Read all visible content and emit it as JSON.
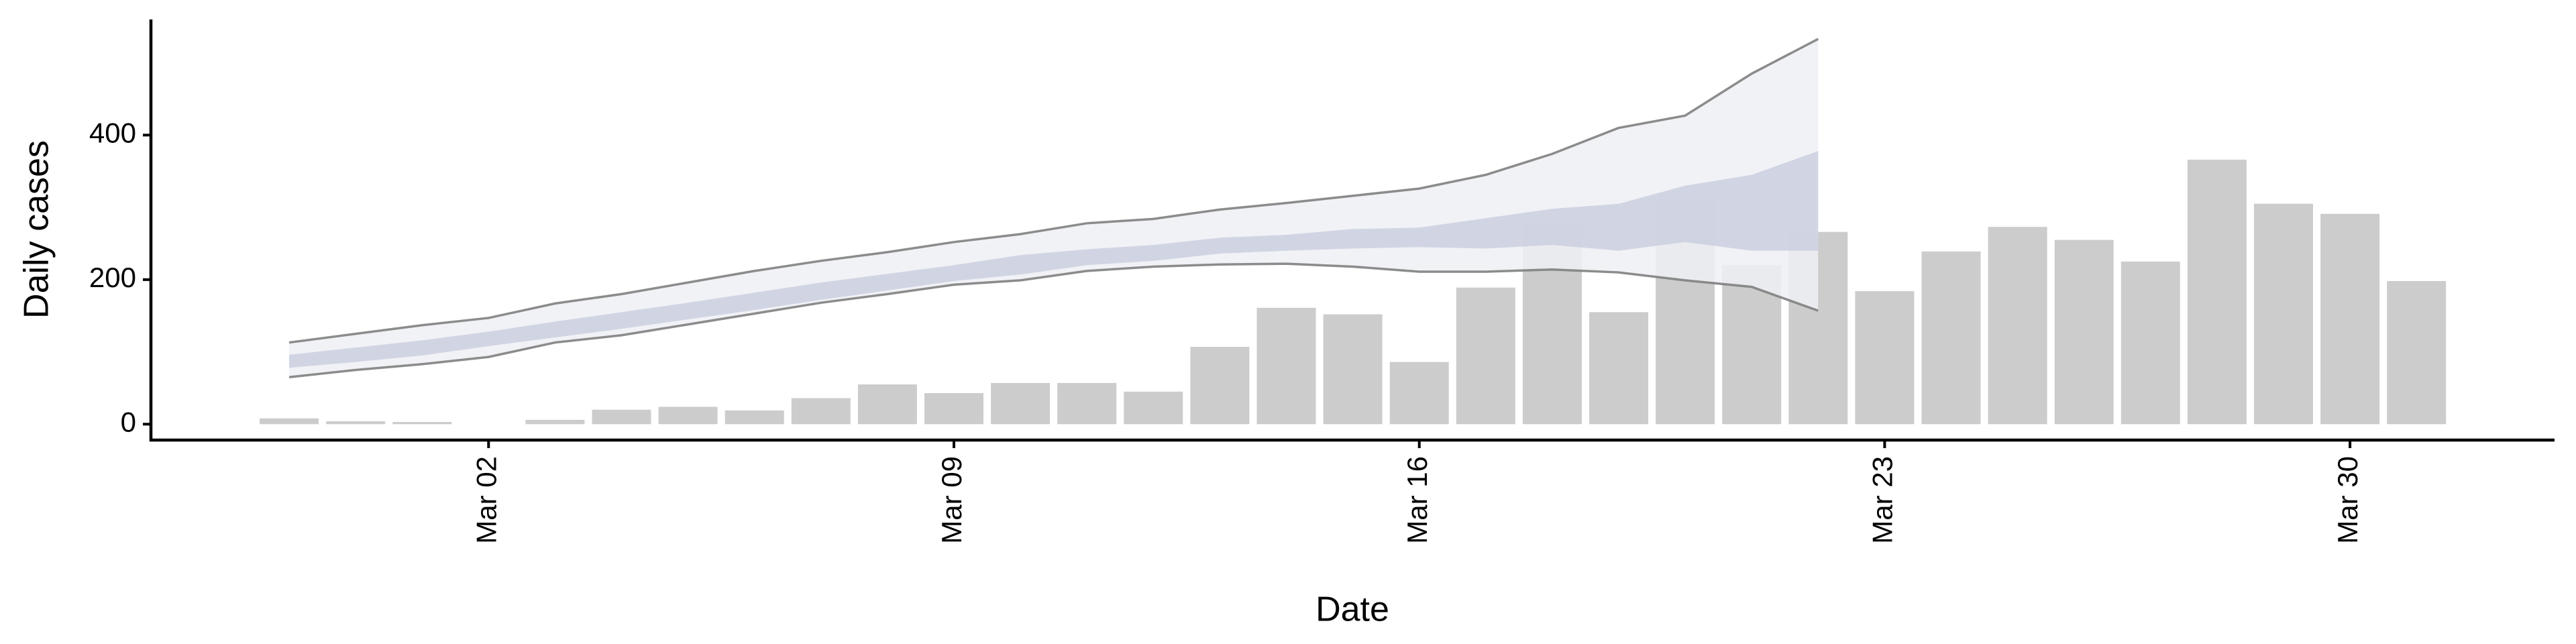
{
  "chart_data": {
    "type": "bar",
    "xlabel": "Date",
    "ylabel": "Daily cases",
    "x": [
      "Feb 28",
      "Feb 29",
      "Mar 01",
      "Mar 02",
      "Mar 03",
      "Mar 04",
      "Mar 05",
      "Mar 06",
      "Mar 07",
      "Mar 08",
      "Mar 09",
      "Mar 10",
      "Mar 11",
      "Mar 12",
      "Mar 13",
      "Mar 14",
      "Mar 15",
      "Mar 16",
      "Mar 17",
      "Mar 18",
      "Mar 19",
      "Mar 20",
      "Mar 21",
      "Mar 22",
      "Mar 23",
      "Mar 24",
      "Mar 25",
      "Mar 26",
      "Mar 27",
      "Mar 28",
      "Mar 29",
      "Mar 30",
      "Mar 31"
    ],
    "values": [
      8,
      4,
      3,
      0,
      6,
      20,
      24,
      19,
      36,
      55,
      43,
      57,
      57,
      45,
      107,
      161,
      152,
      86,
      189,
      277,
      155,
      311,
      220,
      266,
      184,
      239,
      273,
      255,
      225,
      366,
      305,
      291,
      198
    ],
    "color": "#cccccc",
    "bands": {
      "upper": [
        113,
        125,
        137,
        147,
        167,
        180,
        196,
        212,
        226,
        238,
        252,
        263,
        278,
        284,
        297,
        306,
        316,
        326,
        345,
        374,
        410,
        427,
        485,
        533,
        null,
        null,
        null,
        null,
        null,
        null,
        null,
        null,
        null
      ],
      "lower": [
        65,
        75,
        83,
        93,
        113,
        123,
        138,
        153,
        168,
        180,
        193,
        199,
        212,
        218,
        221,
        222,
        218,
        211,
        211,
        214,
        210,
        199,
        190,
        157,
        null,
        null,
        null,
        null,
        null,
        null,
        null,
        null,
        null
      ],
      "inner_high": [
        96,
        106,
        116,
        128,
        142,
        155,
        168,
        182,
        196,
        208,
        220,
        234,
        242,
        248,
        258,
        262,
        270,
        272,
        285,
        298,
        305,
        330,
        345,
        378,
        null,
        null,
        null,
        null,
        null,
        null,
        null,
        null,
        null
      ],
      "inner_low": [
        78,
        86,
        95,
        108,
        120,
        132,
        145,
        158,
        172,
        185,
        198,
        207,
        220,
        226,
        236,
        240,
        243,
        245,
        243,
        248,
        240,
        252,
        240,
        240,
        null,
        null,
        null,
        null,
        null,
        null,
        null,
        null,
        null
      ],
      "outer_color": "#eef0f5",
      "inner_color": "#c9cddf",
      "line_color": "#808080"
    },
    "ylim": [
      -22,
      560
    ],
    "yticks": [
      0,
      200,
      400
    ],
    "xticks": [
      "Mar 02",
      "Mar 09",
      "Mar 16",
      "Mar 23",
      "Mar 30"
    ]
  }
}
